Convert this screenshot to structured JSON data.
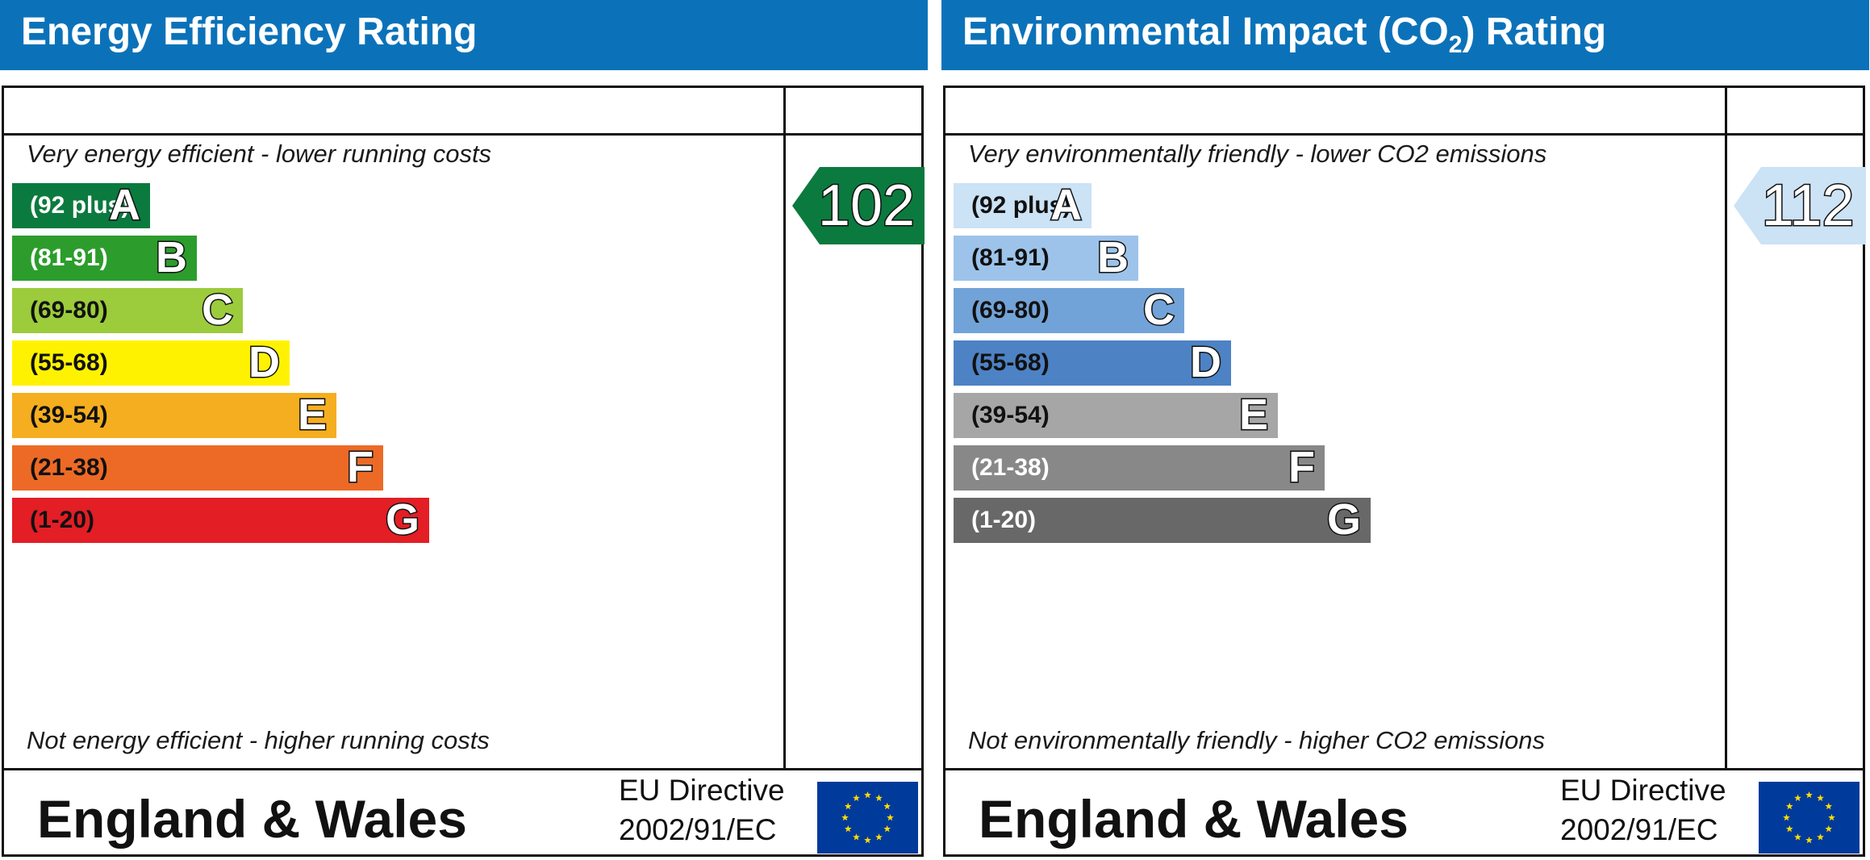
{
  "charts": [
    {
      "title": "Energy Efficiency Rating",
      "top_caption": "Very energy efficient - lower running costs",
      "bottom_caption": "Not energy efficient - higher running costs",
      "footer_region": "England & Wales",
      "eu_directive_line1": "EU Directive",
      "eu_directive_line2": "2002/91/EC",
      "score": "102",
      "score_color": "#0b7a3e"
    },
    {
      "title": "Environmental Impact (CO",
      "title_sub": "2",
      "title_suffix": ") Rating",
      "top_caption": "Very environmentally friendly - lower CO2 emissions",
      "bottom_caption": "Not environmentally friendly - higher CO2 emissions",
      "footer_region": "England & Wales",
      "eu_directive_line1": "EU Directive",
      "eu_directive_line2": "2002/91/EC",
      "score": "112",
      "score_color": "#cce2f5"
    }
  ],
  "chart_data": [
    {
      "type": "bar",
      "title": "Energy Efficiency Rating",
      "categories": [
        "A",
        "B",
        "C",
        "D",
        "E",
        "F",
        "G"
      ],
      "ranges": [
        "(92 plus)",
        "(81-91)",
        "(69-80)",
        "(55-68)",
        "(39-54)",
        "(21-38)",
        "(1-20)"
      ],
      "colors": [
        "#0b7a3e",
        "#2c9d2c",
        "#9ccb3c",
        "#fff200",
        "#f5ae1f",
        "#ec6a26",
        "#e31e25"
      ],
      "range_text_colors": [
        "#ffffff",
        "#ffffff",
        "#111111",
        "#111111",
        "#111111",
        "#111111",
        "#111111"
      ],
      "rating_value": 102,
      "rating_band": "A"
    },
    {
      "type": "bar",
      "title": "Environmental Impact (CO2) Rating",
      "categories": [
        "A",
        "B",
        "C",
        "D",
        "E",
        "F",
        "G"
      ],
      "ranges": [
        "(92 plus)",
        "(81-91)",
        "(69-80)",
        "(55-68)",
        "(39-54)",
        "(21-38)",
        "(1-20)"
      ],
      "colors": [
        "#cce2f5",
        "#9dc3ea",
        "#72a3d8",
        "#4d82c4",
        "#a6a6a6",
        "#888888",
        "#686868"
      ],
      "range_text_colors": [
        "#111111",
        "#111111",
        "#111111",
        "#111111",
        "#111111",
        "#ffffff",
        "#ffffff"
      ],
      "rating_value": 112,
      "rating_band": "A"
    }
  ]
}
